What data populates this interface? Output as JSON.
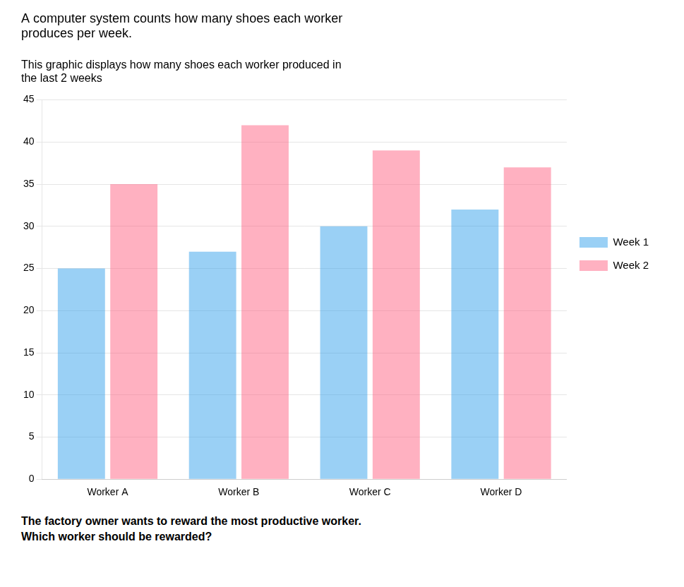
{
  "chart_data": {
    "type": "bar",
    "title": "A computer system counts how many shoes each worker\nproduces per week.",
    "subtitle": "This graphic displays how many shoes each worker produced in\nthe last 2 weeks",
    "annotation": "The factory owner wants to reward the most productive worker.\nWhich worker should be rewarded?",
    "categories": [
      "Worker A",
      "Worker B",
      "Worker C",
      "Worker D"
    ],
    "series": [
      {
        "name": "Week 1",
        "values": [
          25,
          27,
          30,
          32
        ]
      },
      {
        "name": "Week 2",
        "values": [
          35,
          42,
          39,
          37
        ]
      }
    ],
    "ylim": [
      0,
      45
    ],
    "yticks": [
      0,
      5,
      10,
      15,
      20,
      25,
      30,
      35,
      40,
      45
    ],
    "grid": true,
    "legend": "right"
  }
}
